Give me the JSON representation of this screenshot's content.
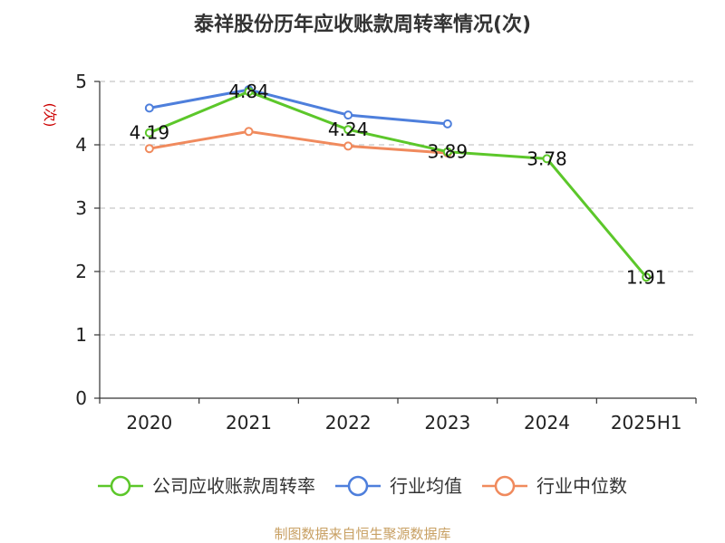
{
  "chart_data": {
    "type": "line",
    "title": "泰祥股份历年应收账款周转率情况(次)",
    "ylabel": "(次)",
    "xlabel": "",
    "categories": [
      "2020",
      "2021",
      "2022",
      "2023",
      "2024",
      "2025H1"
    ],
    "ylim": [
      0,
      5
    ],
    "yticks": [
      0,
      1,
      2,
      3,
      4,
      5
    ],
    "grid": true,
    "legend_position": "bottom",
    "series": [
      {
        "name": "公司应收账款周转率",
        "color": "#5cc72a",
        "values": [
          4.19,
          4.84,
          4.24,
          3.89,
          3.78,
          1.91
        ],
        "show_labels": true
      },
      {
        "name": "行业均值",
        "color": "#4e7fdc",
        "values": [
          4.58,
          4.87,
          4.47,
          4.33,
          null,
          null
        ],
        "show_labels": false
      },
      {
        "name": "行业中位数",
        "color": "#f08a5d",
        "values": [
          3.94,
          4.21,
          3.98,
          3.87,
          null,
          null
        ],
        "show_labels": false
      }
    ],
    "source": "制图数据来自恒生聚源数据库"
  }
}
